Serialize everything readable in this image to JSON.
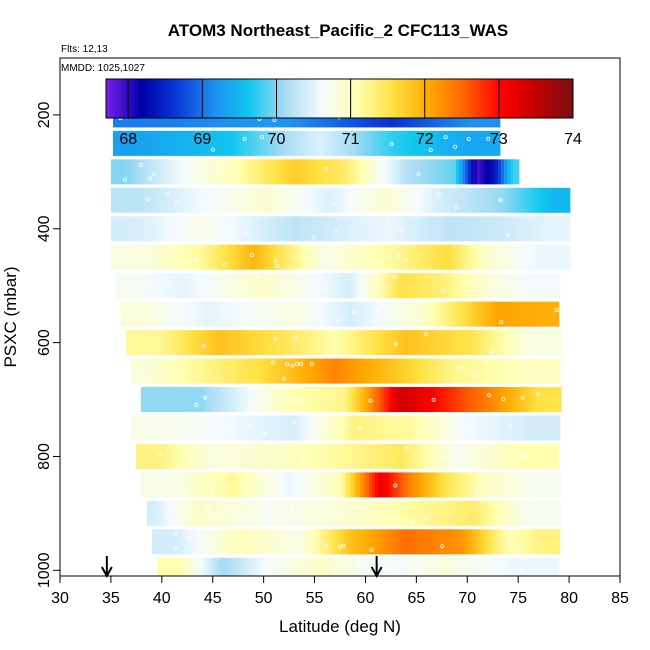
{
  "chart_data": {
    "type": "heatmap",
    "title": "ATOM3 Northeast_Pacific_2 CFC113_WAS",
    "flights_text": "Flts: 12,13",
    "dates_text": "MMDD: 1025,1027",
    "xlabel": "Latitude (deg N)",
    "ylabel": "PSXC (mbar)",
    "xlim": [
      30,
      85
    ],
    "ylim": [
      1010,
      100
    ],
    "xticks": [
      30,
      35,
      40,
      45,
      50,
      55,
      60,
      65,
      70,
      75,
      80,
      85
    ],
    "yticks": [
      200,
      400,
      600,
      800,
      1000
    ],
    "colorbar": {
      "min": 67.7,
      "max": 74,
      "ticks": [
        68,
        69,
        70,
        71,
        72,
        73,
        74
      ],
      "stops": [
        "#7a1ee8",
        "#0000a8",
        "#0a3ad8",
        "#1e8ff0",
        "#10c8f0",
        "#a8dcf4",
        "#f4fbff",
        "#ffffb0",
        "#ffe040",
        "#ffa800",
        "#ff6000",
        "#ff0000",
        "#c00000",
        "#781010"
      ]
    },
    "arrows_x": [
      34.6,
      61.1
    ],
    "rows": [
      {
        "p": 200,
        "cells": [
          [
            35.2,
            45,
            69.05
          ],
          [
            45,
            58,
            69.25
          ],
          [
            58,
            67,
            68.6
          ],
          [
            67,
            73,
            69.15
          ]
        ]
      },
      {
        "p": 250,
        "cells": [
          [
            35.2,
            40,
            69.3
          ],
          [
            40,
            53,
            69.6
          ],
          [
            53,
            58,
            70.45
          ],
          [
            58,
            67,
            69.75
          ],
          [
            67,
            73,
            69.35
          ]
        ]
      },
      {
        "p": 300,
        "cells": [
          [
            35,
            38,
            70.0
          ],
          [
            38,
            44,
            70.5
          ],
          [
            44,
            51,
            71.1
          ],
          [
            51,
            55,
            71.75
          ],
          [
            55,
            61,
            71.4
          ],
          [
            61,
            67,
            70.2
          ],
          [
            67,
            70.5,
            69.9
          ],
          [
            70.5,
            71.5,
            67.9
          ],
          [
            71.5,
            74,
            68.4
          ],
          [
            74,
            75,
            69.8
          ]
        ]
      },
      {
        "p": 350,
        "cells": [
          [
            35,
            41,
            70.25
          ],
          [
            41,
            47,
            70.6
          ],
          [
            47,
            54,
            70.9
          ],
          [
            54,
            59,
            70.45
          ],
          [
            59,
            65,
            70.9
          ],
          [
            65,
            70,
            70.4
          ],
          [
            70,
            77,
            70.05
          ],
          [
            77,
            80,
            69.5
          ]
        ]
      },
      {
        "p": 400,
        "cells": [
          [
            35,
            40,
            70.4
          ],
          [
            40,
            48,
            70.75
          ],
          [
            48,
            58,
            70.25
          ],
          [
            58,
            66,
            70.55
          ],
          [
            66,
            71,
            70.25
          ],
          [
            71,
            76,
            70.35
          ],
          [
            76,
            80,
            70.5
          ]
        ]
      },
      {
        "p": 450,
        "cells": [
          [
            35,
            42,
            70.8
          ],
          [
            42,
            46,
            71.2
          ],
          [
            46,
            52,
            71.95
          ],
          [
            52,
            60,
            70.75
          ],
          [
            60,
            66,
            71.2
          ],
          [
            66,
            70,
            71.6
          ],
          [
            70,
            74,
            70.9
          ],
          [
            74,
            80,
            70.55
          ]
        ]
      },
      {
        "p": 500,
        "cells": [
          [
            35.5,
            39,
            70.7
          ],
          [
            39,
            45,
            70.5
          ],
          [
            45,
            55,
            70.95
          ],
          [
            55,
            62,
            70.4
          ],
          [
            62,
            65,
            71.55
          ],
          [
            65,
            70,
            71.35
          ],
          [
            70,
            75,
            70.8
          ],
          [
            75,
            79,
            70.6
          ]
        ]
      },
      {
        "p": 550,
        "cells": [
          [
            36,
            40,
            70.85
          ],
          [
            40,
            49,
            70.5
          ],
          [
            49,
            57,
            70.8
          ],
          [
            57,
            60,
            70.4
          ],
          [
            60,
            71,
            70.9
          ],
          [
            71,
            75,
            72.1
          ],
          [
            75,
            79,
            72.0
          ]
        ]
      },
      {
        "p": 600,
        "cells": [
          [
            36.5,
            43,
            71.2
          ],
          [
            43,
            48,
            71.85
          ],
          [
            48,
            54,
            71.55
          ],
          [
            54,
            60,
            71.1
          ],
          [
            60,
            68,
            71.85
          ],
          [
            68,
            73,
            71.5
          ],
          [
            73,
            79,
            70.8
          ]
        ]
      },
      {
        "p": 650,
        "cells": [
          [
            37,
            40,
            70.85
          ],
          [
            40,
            47,
            71.2
          ],
          [
            47,
            53,
            71.6
          ],
          [
            53,
            61,
            72.3
          ],
          [
            61,
            65,
            71.8
          ],
          [
            65,
            72,
            71.25
          ],
          [
            72,
            79,
            71.0
          ]
        ]
      },
      {
        "p": 700,
        "cells": [
          [
            38,
            50,
            70.05
          ],
          [
            50,
            55,
            71.05
          ],
          [
            55,
            61,
            71.25
          ],
          [
            61,
            66,
            73.4
          ],
          [
            66,
            71,
            72.8
          ],
          [
            71,
            75,
            72.2
          ],
          [
            75,
            79,
            71.55
          ]
        ]
      },
      {
        "p": 750,
        "cells": [
          [
            37,
            43,
            70.75
          ],
          [
            43,
            50,
            70.6
          ],
          [
            50,
            56,
            70.4
          ],
          [
            56,
            62,
            71.3
          ],
          [
            62,
            67,
            71.15
          ],
          [
            67,
            73,
            70.6
          ],
          [
            73,
            79,
            70.4
          ]
        ]
      },
      {
        "p": 800,
        "cells": [
          [
            37.5,
            42,
            71.3
          ],
          [
            42,
            48,
            70.8
          ],
          [
            48,
            55,
            70.95
          ],
          [
            55,
            61,
            71.2
          ],
          [
            61,
            66,
            71.45
          ],
          [
            66,
            72,
            70.7
          ],
          [
            72,
            79,
            71.1
          ]
        ]
      },
      {
        "p": 850,
        "cells": [
          [
            38,
            44,
            70.75
          ],
          [
            44,
            50,
            71.2
          ],
          [
            50,
            55,
            70.55
          ],
          [
            55,
            60,
            71.05
          ],
          [
            60,
            63,
            73.2
          ],
          [
            63,
            66,
            72.3
          ],
          [
            66,
            70,
            71.5
          ],
          [
            70,
            74,
            70.95
          ],
          [
            74,
            79,
            70.7
          ]
        ]
      },
      {
        "p": 900,
        "cells": [
          [
            38.5,
            40,
            70.4
          ],
          [
            40,
            47,
            70.95
          ],
          [
            47,
            54,
            70.7
          ],
          [
            54,
            61,
            70.85
          ],
          [
            61,
            68,
            71.15
          ],
          [
            68,
            73,
            71.4
          ],
          [
            73,
            79,
            70.7
          ]
        ]
      },
      {
        "p": 950,
        "cells": [
          [
            39,
            44,
            70.4
          ],
          [
            44,
            51,
            71.05
          ],
          [
            51,
            56,
            70.75
          ],
          [
            56,
            61,
            71.85
          ],
          [
            61,
            67,
            72.45
          ],
          [
            67,
            72,
            72.2
          ],
          [
            72,
            76,
            71.05
          ],
          [
            76,
            79,
            71.3
          ]
        ]
      },
      {
        "p": 1000,
        "cells": [
          [
            39.5,
            44,
            71.1
          ],
          [
            44,
            48,
            70.1
          ],
          [
            48,
            53,
            70.65
          ],
          [
            53,
            58,
            70.95
          ],
          [
            58,
            65,
            70.6
          ],
          [
            65,
            71,
            70.8
          ],
          [
            71,
            79,
            70.55
          ]
        ]
      }
    ]
  }
}
